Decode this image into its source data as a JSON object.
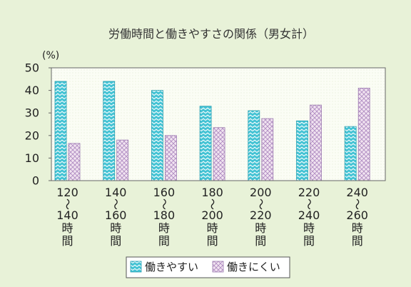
{
  "colors": {
    "background": "#e8f2d8",
    "plot_background": "#fbfdf5",
    "plot_dots": "#d9e6c8",
    "axis": "#666666"
  },
  "chart_data": {
    "type": "bar",
    "title": "労働時間と働きやすさの関係（男女計）",
    "xlabel": "",
    "ylabel": "(%)",
    "ylim": [
      0,
      50
    ],
    "yticks": [
      0,
      10,
      20,
      30,
      40,
      50
    ],
    "categories": [
      "120〜140時間",
      "140〜160時間",
      "160〜180時間",
      "180〜200時間",
      "200〜220時間",
      "220〜240時間",
      "240〜260時間"
    ],
    "series": [
      {
        "name": "働きやすい",
        "values": [
          44,
          44,
          40,
          33,
          31,
          26.5,
          24
        ],
        "color": "#44c3d4",
        "pattern_color": "#ffffff",
        "border_color": "#2a9fb1"
      },
      {
        "name": "働きにくい",
        "values": [
          16.5,
          18,
          20,
          23.5,
          27.5,
          33.5,
          41
        ],
        "color": "#f1e4f1",
        "pattern_color": "#b08cc2",
        "border_color": "#9c7bb0"
      }
    ],
    "legend": "bottom",
    "grid": false
  }
}
